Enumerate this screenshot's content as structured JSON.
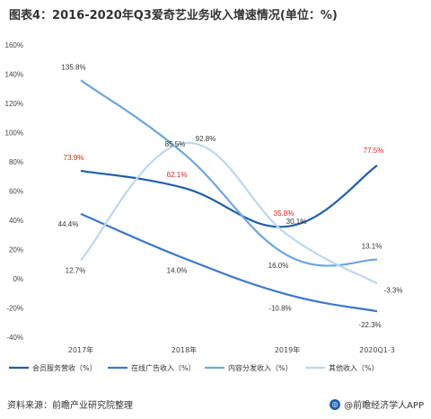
{
  "title": "图表4：2016-2020年Q3爱奇艺业务收入增速情况(单位：%)",
  "footer": {
    "source": "资料来源：前瞻产业研究院整理",
    "brand": "@前瞻经济学人APP"
  },
  "chart_data": {
    "type": "line",
    "categories": [
      "2017年",
      "2018年",
      "2019年",
      "2020Q1-3"
    ],
    "y_ticks": [
      "-40%",
      "-20%",
      "0%",
      "20%",
      "40%",
      "60%",
      "80%",
      "100%",
      "120%",
      "140%",
      "160%"
    ],
    "ylim": [
      -40,
      160
    ],
    "grid": false,
    "legend_position": "bottom",
    "series": [
      {
        "name": "会员服务营收（%）",
        "color": "#1f5fa8",
        "values": [
          73.9,
          62.1,
          35.8,
          77.5
        ],
        "labels": [
          "73.9%",
          "62.1%",
          "35.8%",
          "77.5%"
        ],
        "label_color": "#e0201a"
      },
      {
        "name": "在线广告收入（%）",
        "color": "#3a78c8",
        "values": [
          44.4,
          14.0,
          -10.8,
          -22.3
        ],
        "labels": [
          "44.4%",
          "14.0%",
          "-10.8%",
          "-22.3%"
        ],
        "label_color": "#333333"
      },
      {
        "name": "内容分发收入（%）",
        "color": "#6ea6dc",
        "values": [
          135.8,
          85.5,
          16.0,
          13.1
        ],
        "labels": [
          "135.8%",
          "85.5%",
          "16.0%",
          "13.1%"
        ],
        "label_color": "#333333"
      },
      {
        "name": "其他收入（%）",
        "color": "#b9d8f0",
        "values": [
          12.7,
          92.8,
          30.1,
          -3.3
        ],
        "labels": [
          "12.7%",
          "92.8%",
          "30.1%",
          "-3.3%"
        ],
        "label_color": "#333333"
      }
    ]
  }
}
